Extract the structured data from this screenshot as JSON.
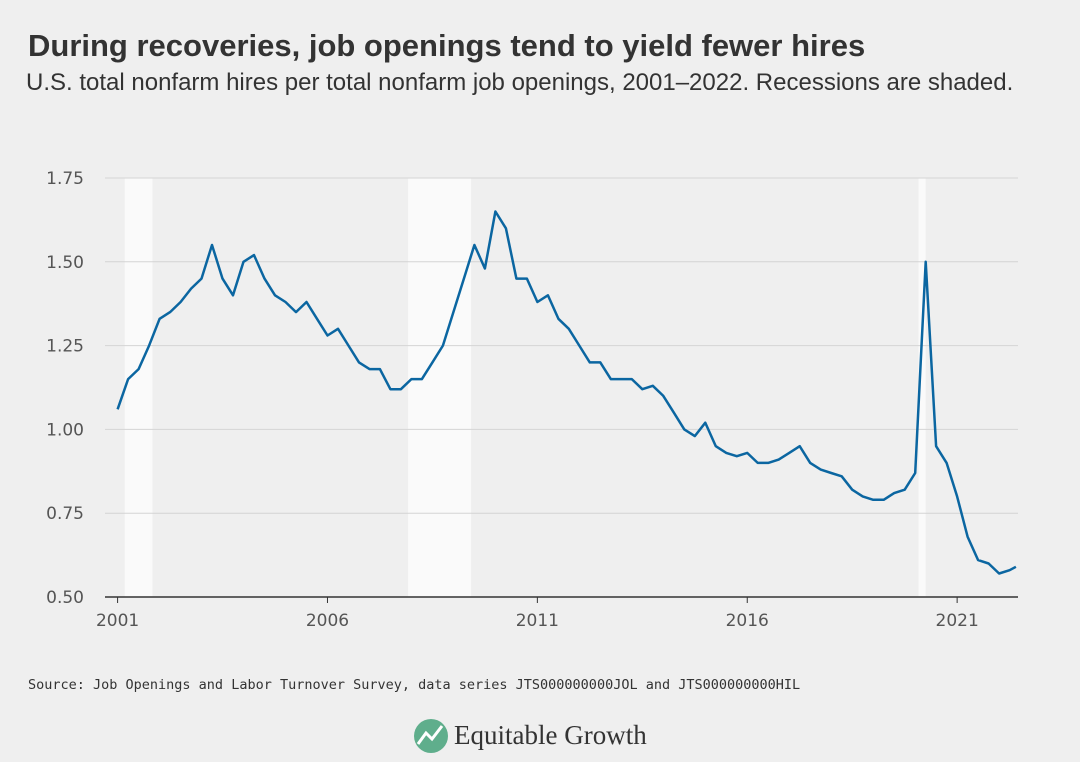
{
  "chart_data": {
    "type": "line",
    "title": "During recoveries, job openings tend to yield fewer hires",
    "subtitle": "U.S. total nonfarm hires per total nonfarm job openings, 2001–2022. Recessions are shaded.",
    "source": "Source: Job Openings and Labor Turnover Survey, data series JTS000000000JOL and JTS000000000HIL",
    "brand": "Equitable Growth",
    "x": [
      2001,
      2001.25,
      2001.5,
      2001.75,
      2002,
      2002.25,
      2002.5,
      2002.75,
      2003,
      2003.25,
      2003.5,
      2003.75,
      2004,
      2004.25,
      2004.5,
      2004.75,
      2005,
      2005.25,
      2005.5,
      2005.75,
      2006,
      2006.25,
      2006.5,
      2006.75,
      2007,
      2007.25,
      2007.5,
      2007.75,
      2008,
      2008.25,
      2008.5,
      2008.75,
      2009,
      2009.25,
      2009.5,
      2009.75,
      2010,
      2010.25,
      2010.5,
      2010.75,
      2011,
      2011.25,
      2011.5,
      2011.75,
      2012,
      2012.25,
      2012.5,
      2012.75,
      2013,
      2013.25,
      2013.5,
      2013.75,
      2014,
      2014.25,
      2014.5,
      2014.75,
      2015,
      2015.25,
      2015.5,
      2015.75,
      2016,
      2016.25,
      2016.5,
      2016.75,
      2017,
      2017.25,
      2017.5,
      2017.75,
      2018,
      2018.25,
      2018.5,
      2018.75,
      2019,
      2019.25,
      2019.5,
      2019.75,
      2020,
      2020.25,
      2020.5,
      2020.75,
      2021,
      2021.25,
      2021.5,
      2021.75,
      2022,
      2022.25,
      2022.4
    ],
    "series": [
      {
        "name": "Hires per job opening",
        "color": "#0b66a1",
        "values": [
          1.06,
          1.15,
          1.18,
          1.25,
          1.33,
          1.35,
          1.38,
          1.42,
          1.45,
          1.55,
          1.45,
          1.4,
          1.5,
          1.52,
          1.45,
          1.4,
          1.38,
          1.35,
          1.38,
          1.33,
          1.28,
          1.3,
          1.25,
          1.2,
          1.18,
          1.18,
          1.12,
          1.12,
          1.15,
          1.15,
          1.2,
          1.25,
          1.35,
          1.45,
          1.55,
          1.48,
          1.65,
          1.6,
          1.45,
          1.45,
          1.38,
          1.4,
          1.33,
          1.3,
          1.25,
          1.2,
          1.2,
          1.15,
          1.15,
          1.15,
          1.12,
          1.13,
          1.1,
          1.05,
          1.0,
          0.98,
          1.02,
          0.95,
          0.93,
          0.92,
          0.93,
          0.9,
          0.9,
          0.91,
          0.93,
          0.95,
          0.9,
          0.88,
          0.87,
          0.86,
          0.82,
          0.8,
          0.79,
          0.79,
          0.81,
          0.82,
          0.87,
          1.5,
          0.95,
          0.9,
          0.8,
          0.68,
          0.61,
          0.6,
          0.57,
          0.58,
          0.59
        ]
      }
    ],
    "recessions": [
      [
        2001.17,
        2001.83
      ],
      [
        2007.92,
        2009.42
      ],
      [
        2020.08,
        2020.25
      ]
    ],
    "xlim": [
      2000.7,
      2022.45
    ],
    "ylim": [
      0.5,
      1.75
    ],
    "xticks": [
      2001,
      2006,
      2011,
      2016,
      2021
    ],
    "yticks": [
      {
        "value": 0.5,
        "label": "0.50"
      },
      {
        "value": 0.75,
        "label": "0.75"
      },
      {
        "value": 1,
        "label": "1.00"
      },
      {
        "value": 1.25,
        "label": "1.25"
      },
      {
        "value": 1.5,
        "label": "1.50"
      },
      {
        "value": 1.75,
        "label": "1.75"
      }
    ],
    "grid": true
  }
}
